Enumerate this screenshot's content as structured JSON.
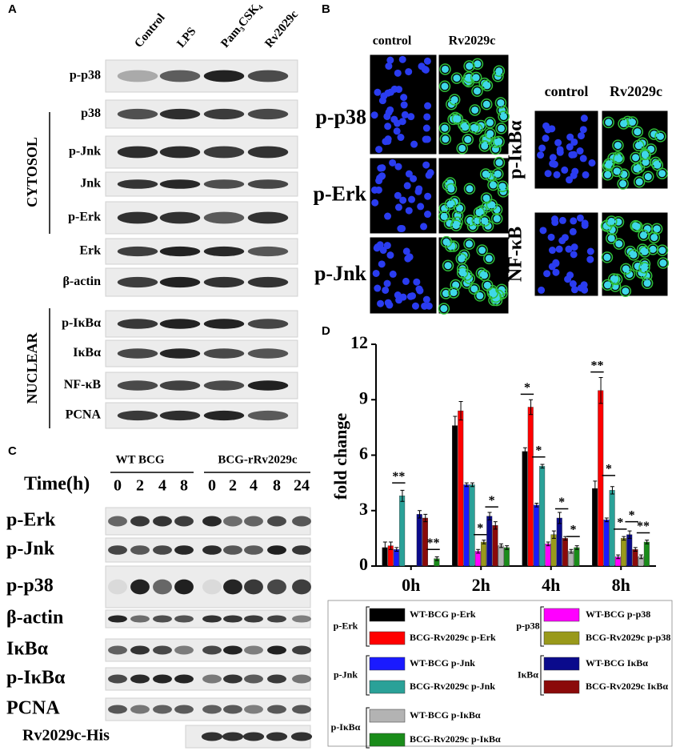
{
  "panel_a": {
    "label": "A",
    "lanes": [
      "Control",
      "LPS",
      "Pam₃CSK₄",
      "Rv2029c"
    ],
    "rows": [
      "p-p38",
      "p38",
      "p-Jnk",
      "Jnk",
      "p-Erk",
      "Erk",
      "β-actin",
      "p-IκBα",
      "IκBα",
      "NF-κB",
      "PCNA"
    ],
    "groups": [
      "CYTOSOL",
      "NUCLEAR"
    ]
  },
  "panel_b": {
    "label": "B",
    "columns": [
      "control",
      "Rv2029c"
    ],
    "rows": [
      "p-p38",
      "p-Erk",
      "p-Jnk"
    ],
    "columns_2": [
      "control",
      "Rv2029c"
    ],
    "rows_2": [
      "p-IκBα",
      "NF-κB"
    ]
  },
  "panel_c": {
    "label": "C",
    "groups": [
      "WT BCG",
      "BCG-rRv2029c"
    ],
    "time_label": "Time(h)",
    "times": [
      0,
      2,
      4,
      8,
      0,
      2,
      4,
      8,
      24
    ],
    "rows": [
      "p-Erk",
      "p-Jnk",
      "p-p38",
      "β-actin",
      "IκBα",
      "p-IκBα",
      "PCNA",
      "Rv2029c-His"
    ]
  },
  "panel_d": {
    "label": "D"
  },
  "chart_data": {
    "type": "bar",
    "y_label": "fold change",
    "categories": [
      "0h",
      "2h",
      "4h",
      "8h"
    ],
    "ylim": [
      0,
      12
    ],
    "yticks": [
      0,
      3,
      6,
      9,
      12
    ],
    "series": [
      {
        "name": "WT-BCG p-Erk",
        "group": "p-Erk",
        "color": "#000000",
        "values": [
          1.0,
          7.6,
          6.2,
          4.2
        ],
        "errors": [
          0.3,
          0.5,
          0.2,
          0.4
        ]
      },
      {
        "name": "BCG-Rv2029c p-Erk",
        "group": "p-Erk",
        "color": "#ff0000",
        "values": [
          1.1,
          8.4,
          8.6,
          9.5
        ],
        "errors": [
          0.2,
          0.5,
          0.4,
          0.7
        ]
      },
      {
        "name": "WT-BCG p-Jnk",
        "group": "p-Jnk",
        "color": "#1a1aff",
        "values": [
          0.9,
          4.4,
          3.3,
          2.5
        ],
        "errors": [
          0.1,
          0.1,
          0.1,
          0.1
        ]
      },
      {
        "name": "BCG-Rv2029c p-Jnk",
        "group": "p-Jnk",
        "color": "#2aa198",
        "values": [
          3.8,
          4.4,
          5.4,
          4.1
        ],
        "errors": [
          0.3,
          0.1,
          0.1,
          0.2
        ]
      },
      {
        "name": "WT-BCG p-p38",
        "group": "p-p38",
        "color": "#ff00ff",
        "values": [
          null,
          0.8,
          1.2,
          0.5
        ],
        "errors": [
          null,
          0.1,
          0.1,
          0.1
        ]
      },
      {
        "name": "BCG-Rv2029c p-p38",
        "group": "p-p38",
        "color": "#99991a",
        "values": [
          null,
          1.3,
          1.7,
          1.5
        ],
        "errors": [
          null,
          0.1,
          0.2,
          0.1
        ]
      },
      {
        "name": "WT-BCG IκBα",
        "group": "IκBα",
        "color": "#0a0a8c",
        "values": [
          2.8,
          2.7,
          2.6,
          1.7
        ],
        "errors": [
          0.2,
          0.2,
          0.3,
          0.2
        ]
      },
      {
        "name": "BCG-Rv2029c IκBα",
        "group": "IκBα",
        "color": "#8b0a0a",
        "values": [
          2.6,
          2.2,
          1.5,
          0.9
        ],
        "errors": [
          0.2,
          0.2,
          0.1,
          0.1
        ]
      },
      {
        "name": "WT-BCG p-IκBα",
        "group": "p-IκBα",
        "color": "#b3b3b3",
        "values": [
          null,
          1.1,
          0.8,
          0.5
        ],
        "errors": [
          null,
          0.1,
          0.1,
          0.1
        ]
      },
      {
        "name": "BCG-Rv2029c p-IκBα",
        "group": "p-IκBα",
        "color": "#1a8c1a",
        "values": [
          0.4,
          1.0,
          1.0,
          1.3
        ],
        "errors": [
          0.1,
          0.1,
          0.1,
          0.1
        ]
      }
    ],
    "annotations": [
      {
        "text": "**",
        "category": "0h",
        "series": "BCG-Rv2029c p-Jnk",
        "y": 4.5
      },
      {
        "text": "**",
        "category": "0h",
        "series": "BCG-Rv2029c p-IκBα",
        "y": 0.9
      },
      {
        "text": "*",
        "category": "2h",
        "series": "BCG-Rv2029c p-p38",
        "y": 1.7
      },
      {
        "text": "*",
        "category": "2h",
        "series": "BCG-Rv2029c IκBα",
        "y": 3.2
      },
      {
        "text": "*",
        "category": "4h",
        "series": "BCG-Rv2029c p-Erk",
        "y": 9.3
      },
      {
        "text": "*",
        "category": "4h",
        "series": "BCG-Rv2029c p-Jnk",
        "y": 5.9
      },
      {
        "text": "*",
        "category": "4h",
        "series": "BCG-Rv2029c IκBα",
        "y": 3.1
      },
      {
        "text": "*",
        "category": "4h",
        "series": "BCG-Rv2029c p-IκBα",
        "y": 1.6
      },
      {
        "text": "**",
        "category": "8h",
        "series": "BCG-Rv2029c p-Erk",
        "y": 10.5
      },
      {
        "text": "*",
        "category": "8h",
        "series": "BCG-Rv2029c p-Jnk",
        "y": 4.9
      },
      {
        "text": "*",
        "category": "8h",
        "series": "BCG-Rv2029c p-p38",
        "y": 2.0
      },
      {
        "text": "*",
        "category": "8h",
        "series": "BCG-Rv2029c IκBα",
        "y": 2.4
      },
      {
        "text": "**",
        "category": "8h",
        "series": "BCG-Rv2029c p-IκBα",
        "y": 1.8
      }
    ]
  }
}
